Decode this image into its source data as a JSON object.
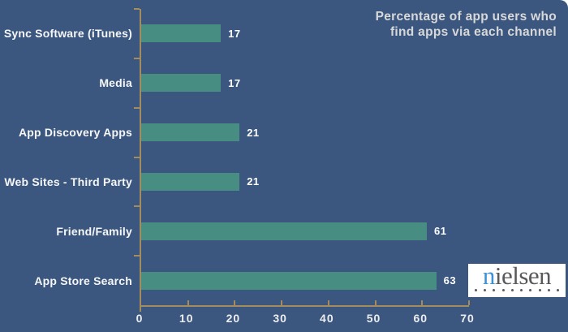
{
  "chart": {
    "background_color": "#3B5780",
    "title_lines": [
      "Percentage of app users who",
      "find apps via each channel"
    ],
    "title_color": "#D8D8D8",
    "axis_color": "#A58C5C",
    "bar_color": "#478D82",
    "value_label_color": "#FFFFFF",
    "category_label_color": "#F6F6F6",
    "tick_label_color": "#EDEDED"
  },
  "chart_data": {
    "type": "bar",
    "orientation": "horizontal",
    "title": "Percentage of app users who find apps via each channel",
    "categories": [
      "Sync Software (iTunes)",
      "Media",
      "App Discovery Apps",
      "Web Sites - Third Party",
      "Friend/Family",
      "App Store Search"
    ],
    "values": [
      17,
      17,
      21,
      21,
      61,
      63
    ],
    "xlabel": "",
    "ylabel": "",
    "xlim": [
      0,
      70
    ],
    "xticks": [
      0,
      10,
      20,
      30,
      40,
      50,
      60,
      70
    ],
    "grid": false,
    "legend": false,
    "value_labels_shown": true
  },
  "branding": {
    "logo_first_letter": "n",
    "logo_rest": "ielsen",
    "logo_background": "#FFFFFF",
    "logo_text_color": "#58595B",
    "logo_accent_color": "#3D8FD6",
    "dots_count": 10
  }
}
